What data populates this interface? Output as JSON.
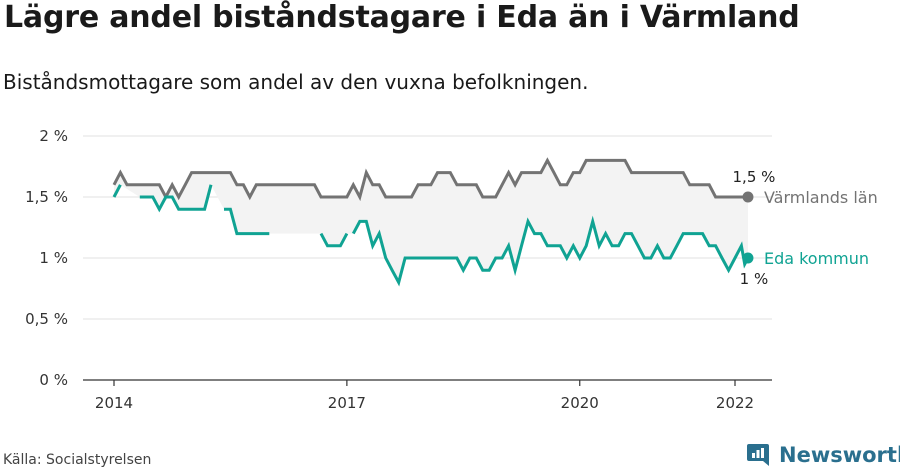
{
  "title": "Lägre andel biståndstagare i Eda än i Värmland",
  "subtitle": "Biståndsmottagare som andel av den vuxna befolkningen.",
  "source": "Källa: Socialstyrelsen",
  "brand": {
    "name": "Newsworthy",
    "icon": "newsworthy-logo-icon",
    "color": "#2a6f8e"
  },
  "chart_data": {
    "type": "line",
    "title": "Lägre andel biståndstagare i Eda än i Värmland",
    "subtitle": "Biståndsmottagare som andel av den vuxna befolkningen.",
    "xlabel": "",
    "ylabel": "",
    "x_unit": "year (monthly data)",
    "xlim": [
      2013.8,
      2022.3
    ],
    "ylim": [
      0,
      2
    ],
    "yticks": [
      0,
      0.5,
      1,
      1.5,
      2
    ],
    "ytick_labels": [
      "0 %",
      "0,5 %",
      "1 %",
      "1,5 %",
      "2 %"
    ],
    "xticks": [
      2014,
      2017,
      2020,
      2022
    ],
    "xtick_labels": [
      "2014",
      "2017",
      "2020",
      "2022"
    ],
    "grid": "horizontal",
    "legend": "direct labels at line ends (right)",
    "band_fill_between_series": true,
    "series": [
      {
        "name": "Värmlands län",
        "color": "#737373",
        "end_value_label": "1,5 %",
        "points": [
          [
            2014.0,
            1.6
          ],
          [
            2014.083,
            1.7
          ],
          [
            2014.167,
            1.6
          ],
          [
            2014.25,
            1.6
          ],
          [
            2014.333,
            1.6
          ],
          [
            2014.417,
            1.6
          ],
          [
            2014.5,
            1.6
          ],
          [
            2014.583,
            1.6
          ],
          [
            2014.667,
            1.5
          ],
          [
            2014.75,
            1.6
          ],
          [
            2014.833,
            1.5
          ],
          [
            2014.917,
            1.6
          ],
          [
            2015.0,
            1.7
          ],
          [
            2015.083,
            1.7
          ],
          [
            2015.167,
            1.7
          ],
          [
            2015.25,
            1.7
          ],
          [
            2015.333,
            1.7
          ],
          [
            2015.417,
            1.7
          ],
          [
            2015.5,
            1.7
          ],
          [
            2015.583,
            1.6
          ],
          [
            2015.667,
            1.6
          ],
          [
            2015.75,
            1.5
          ],
          [
            2015.833,
            1.6
          ],
          [
            2015.917,
            1.6
          ],
          [
            2016.0,
            1.6
          ],
          [
            2016.083,
            1.6
          ],
          [
            2016.167,
            1.6
          ],
          [
            2016.25,
            1.6
          ],
          [
            2016.333,
            1.6
          ],
          [
            2016.417,
            1.6
          ],
          [
            2016.5,
            1.6
          ],
          [
            2016.583,
            1.6
          ],
          [
            2016.667,
            1.5
          ],
          [
            2016.75,
            1.5
          ],
          [
            2016.833,
            1.5
          ],
          [
            2016.917,
            1.5
          ],
          [
            2017.0,
            1.5
          ],
          [
            2017.083,
            1.6
          ],
          [
            2017.167,
            1.5
          ],
          [
            2017.25,
            1.7
          ],
          [
            2017.333,
            1.6
          ],
          [
            2017.417,
            1.6
          ],
          [
            2017.5,
            1.5
          ],
          [
            2017.583,
            1.5
          ],
          [
            2017.667,
            1.5
          ],
          [
            2017.75,
            1.5
          ],
          [
            2017.833,
            1.5
          ],
          [
            2017.917,
            1.6
          ],
          [
            2018.0,
            1.6
          ],
          [
            2018.083,
            1.6
          ],
          [
            2018.167,
            1.7
          ],
          [
            2018.25,
            1.7
          ],
          [
            2018.333,
            1.7
          ],
          [
            2018.417,
            1.6
          ],
          [
            2018.5,
            1.6
          ],
          [
            2018.583,
            1.6
          ],
          [
            2018.667,
            1.6
          ],
          [
            2018.75,
            1.5
          ],
          [
            2018.833,
            1.5
          ],
          [
            2018.917,
            1.5
          ],
          [
            2019.0,
            1.6
          ],
          [
            2019.083,
            1.7
          ],
          [
            2019.167,
            1.6
          ],
          [
            2019.25,
            1.7
          ],
          [
            2019.333,
            1.7
          ],
          [
            2019.417,
            1.7
          ],
          [
            2019.5,
            1.7
          ],
          [
            2019.583,
            1.8
          ],
          [
            2019.667,
            1.7
          ],
          [
            2019.75,
            1.6
          ],
          [
            2019.833,
            1.6
          ],
          [
            2019.917,
            1.7
          ],
          [
            2020.0,
            1.7
          ],
          [
            2020.083,
            1.8
          ],
          [
            2020.167,
            1.8
          ],
          [
            2020.25,
            1.8
          ],
          [
            2020.333,
            1.8
          ],
          [
            2020.417,
            1.8
          ],
          [
            2020.5,
            1.8
          ],
          [
            2020.583,
            1.8
          ],
          [
            2020.667,
            1.7
          ],
          [
            2020.75,
            1.7
          ],
          [
            2020.833,
            1.7
          ],
          [
            2020.917,
            1.7
          ],
          [
            2021.0,
            1.7
          ],
          [
            2021.083,
            1.7
          ],
          [
            2021.167,
            1.7
          ],
          [
            2021.25,
            1.7
          ],
          [
            2021.333,
            1.7
          ],
          [
            2021.417,
            1.6
          ],
          [
            2021.5,
            1.6
          ],
          [
            2021.583,
            1.6
          ],
          [
            2021.667,
            1.6
          ],
          [
            2021.75,
            1.5
          ],
          [
            2021.833,
            1.5
          ],
          [
            2021.917,
            1.5
          ],
          [
            2022.0,
            1.5
          ],
          [
            2022.083,
            1.5
          ],
          [
            2022.167,
            1.5
          ]
        ]
      },
      {
        "name": "Eda kommun",
        "color": "#10a393",
        "end_value_label": "1 %",
        "points": [
          [
            2014.0,
            1.5
          ],
          [
            2014.083,
            1.6
          ],
          null,
          [
            2014.333,
            1.5
          ],
          [
            2014.417,
            1.5
          ],
          [
            2014.5,
            1.5
          ],
          [
            2014.583,
            1.4
          ],
          [
            2014.667,
            1.5
          ],
          [
            2014.75,
            1.5
          ],
          [
            2014.833,
            1.4
          ],
          [
            2014.917,
            1.4
          ],
          [
            2015.0,
            1.4
          ],
          [
            2015.083,
            1.4
          ],
          [
            2015.167,
            1.4
          ],
          [
            2015.25,
            1.6
          ],
          null,
          [
            2015.417,
            1.4
          ],
          [
            2015.5,
            1.4
          ],
          [
            2015.583,
            1.2
          ],
          [
            2015.667,
            1.2
          ],
          [
            2015.75,
            1.2
          ],
          [
            2015.833,
            1.2
          ],
          [
            2015.917,
            1.2
          ],
          [
            2016.0,
            1.2
          ],
          null,
          [
            2016.667,
            1.2
          ],
          [
            2016.75,
            1.1
          ],
          [
            2016.833,
            1.1
          ],
          [
            2016.917,
            1.1
          ],
          [
            2017.0,
            1.2
          ],
          null,
          [
            2017.083,
            1.2
          ],
          [
            2017.167,
            1.3
          ],
          [
            2017.25,
            1.3
          ],
          [
            2017.333,
            1.1
          ],
          [
            2017.417,
            1.2
          ],
          [
            2017.5,
            1.0
          ],
          [
            2017.583,
            0.9
          ],
          [
            2017.667,
            0.8
          ],
          [
            2017.75,
            1.0
          ],
          [
            2017.833,
            1.0
          ],
          [
            2017.917,
            1.0
          ],
          [
            2018.0,
            1.0
          ],
          [
            2018.083,
            1.0
          ],
          [
            2018.167,
            1.0
          ],
          [
            2018.25,
            1.0
          ],
          [
            2018.333,
            1.0
          ],
          [
            2018.417,
            1.0
          ],
          [
            2018.5,
            0.9
          ],
          [
            2018.583,
            1.0
          ],
          [
            2018.667,
            1.0
          ],
          [
            2018.75,
            0.9
          ],
          [
            2018.833,
            0.9
          ],
          [
            2018.917,
            1.0
          ],
          [
            2019.0,
            1.0
          ],
          [
            2019.083,
            1.1
          ],
          [
            2019.167,
            0.9
          ],
          [
            2019.25,
            1.1
          ],
          [
            2019.333,
            1.3
          ],
          [
            2019.417,
            1.2
          ],
          [
            2019.5,
            1.2
          ],
          [
            2019.583,
            1.1
          ],
          [
            2019.667,
            1.1
          ],
          [
            2019.75,
            1.1
          ],
          [
            2019.833,
            1.0
          ],
          [
            2019.917,
            1.1
          ],
          [
            2020.0,
            1.0
          ],
          [
            2020.083,
            1.1
          ],
          [
            2020.167,
            1.3
          ],
          [
            2020.25,
            1.1
          ],
          [
            2020.333,
            1.2
          ],
          [
            2020.417,
            1.1
          ],
          [
            2020.5,
            1.1
          ],
          [
            2020.583,
            1.2
          ],
          [
            2020.667,
            1.2
          ],
          [
            2020.75,
            1.1
          ],
          [
            2020.833,
            1.0
          ],
          [
            2020.917,
            1.0
          ],
          [
            2021.0,
            1.1
          ],
          [
            2021.083,
            1.0
          ],
          [
            2021.167,
            1.0
          ],
          [
            2021.25,
            1.1
          ],
          [
            2021.333,
            1.2
          ],
          [
            2021.417,
            1.2
          ],
          [
            2021.5,
            1.2
          ],
          [
            2021.583,
            1.2
          ],
          [
            2021.667,
            1.1
          ],
          [
            2021.75,
            1.1
          ],
          [
            2021.833,
            1.0
          ],
          [
            2021.917,
            0.9
          ],
          [
            2022.0,
            1.0
          ],
          [
            2022.083,
            1.1
          ],
          [
            2022.125,
            0.95
          ],
          [
            2022.167,
            1.0
          ]
        ]
      }
    ]
  }
}
